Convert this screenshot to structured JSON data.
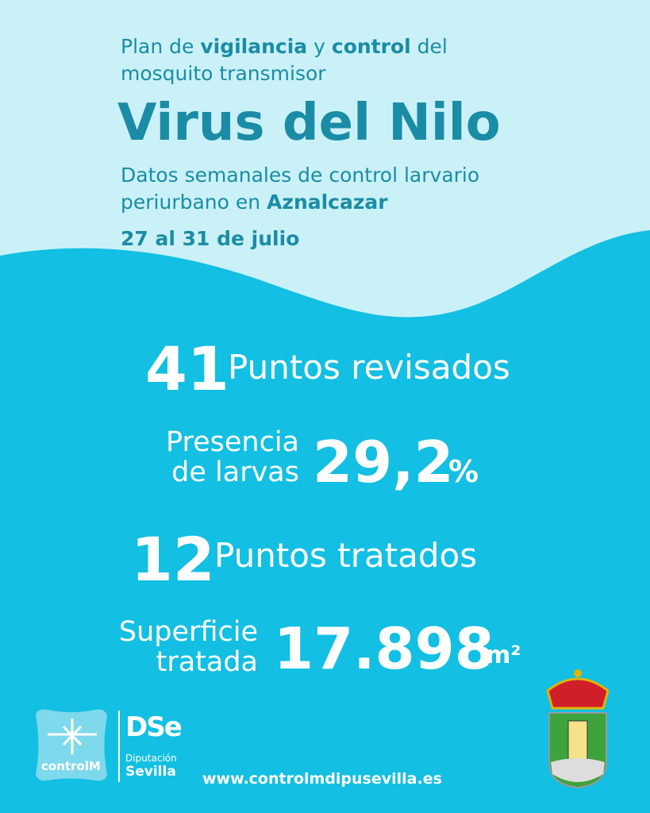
{
  "header": {
    "intro": [
      [
        {
          "text": "Plan de "
        },
        {
          "text": "vigilancia"
        },
        {
          "text": " y "
        },
        {
          "text": "control"
        },
        {
          "text": " del"
        }
      ],
      [
        {
          "text": "mosquito transmisor"
        }
      ]
    ],
    "title": "Virus del Nilo",
    "subtitle": [
      [
        {
          "text": "Datos semanales de control larvario"
        }
      ],
      [
        {
          "text": "periurbano en "
        },
        {
          "text": "Aznalcazar"
        }
      ]
    ],
    "date": "27 al 31 de julio"
  },
  "stats": [
    {
      "number": "41",
      "label": [
        "Puntos revisados"
      ]
    },
    {
      "label": [
        "Presencia",
        "de larvas"
      ],
      "number": "29,2",
      "unit": "%"
    },
    {
      "number": "12",
      "label": [
        "Puntos tratados"
      ]
    },
    {
      "label": [
        "Superficie",
        "tratada"
      ],
      "number": "17.898",
      "unit": "m²"
    }
  ],
  "footer": {
    "logo_controlm": "controlM",
    "logo_dse": "DSe",
    "logo_diputacion": "Diputación",
    "logo_sevilla": "Sevilla",
    "url": "www.controlmdipusevilla.es"
  }
}
